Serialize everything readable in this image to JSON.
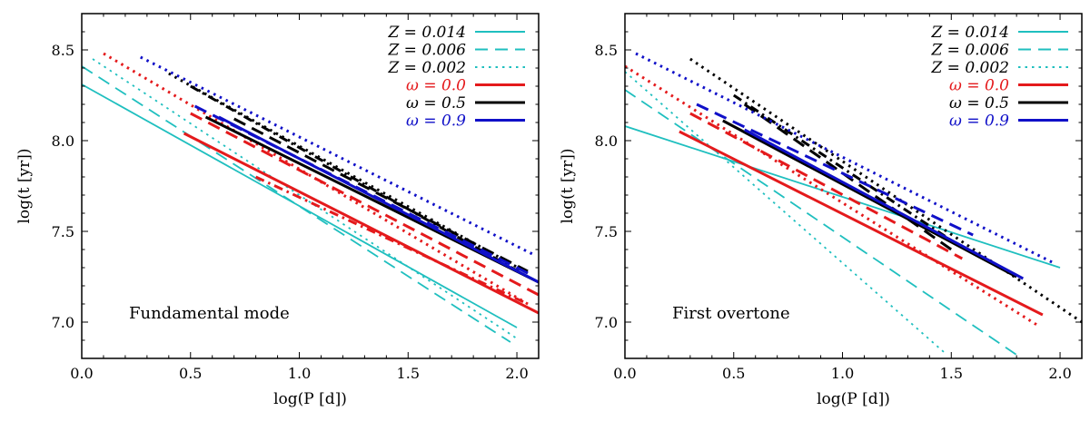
{
  "figure": {
    "colors": {
      "cyan": "#1FBFBF",
      "red": "#E41A1C",
      "black": "#000000",
      "blue": "#1010C8"
    }
  },
  "chart_data": [
    {
      "type": "line",
      "annotation": "Fundamental mode",
      "xlabel": "log(P [d])",
      "ylabel": "log(t [yr])",
      "xlim": [
        0.0,
        2.1
      ],
      "ylim": [
        6.8,
        8.7
      ],
      "xticks": [
        "0.0",
        "0.5",
        "1.0",
        "1.5",
        "2.0"
      ],
      "yticks": [
        "7.0",
        "7.5",
        "8.0",
        "8.5"
      ],
      "legend_position": "top-right",
      "legend": [
        {
          "label": "Z = 0.014",
          "color": "#1FBFBF",
          "dash": "solid"
        },
        {
          "label": "Z = 0.006",
          "color": "#1FBFBF",
          "dash": "dashed"
        },
        {
          "label": "Z = 0.002",
          "color": "#1FBFBF",
          "dash": "dotted"
        },
        {
          "label": "ω = 0.0",
          "color": "#E41A1C",
          "dash": "solid"
        },
        {
          "label": "ω = 0.5",
          "color": "#000000",
          "dash": "solid"
        },
        {
          "label": "ω = 0.9",
          "color": "#1010C8",
          "dash": "solid"
        }
      ],
      "series": [
        {
          "color": "#1FBFBF",
          "dash": "solid",
          "width": "thin",
          "x": [
            0.0,
            2.0
          ],
          "y": [
            8.31,
            6.97
          ]
        },
        {
          "color": "#1FBFBF",
          "dash": "dashed",
          "width": "thin",
          "x": [
            0.0,
            1.97
          ],
          "y": [
            8.41,
            6.89
          ]
        },
        {
          "color": "#1FBFBF",
          "dash": "dotted",
          "width": "thin",
          "x": [
            0.05,
            2.0
          ],
          "y": [
            8.45,
            6.91
          ]
        },
        {
          "color": "#E41A1C",
          "dash": "solid",
          "width": "thick",
          "x": [
            0.47,
            2.1
          ],
          "y": [
            8.04,
            7.05
          ]
        },
        {
          "color": "#E41A1C",
          "dash": "dashed",
          "width": "thick",
          "x": [
            0.5,
            2.1
          ],
          "y": [
            8.15,
            7.15
          ]
        },
        {
          "color": "#E41A1C",
          "dash": "dotted",
          "width": "thick",
          "x": [
            0.1,
            2.05
          ],
          "y": [
            8.48,
            7.1
          ]
        },
        {
          "color": "#000000",
          "dash": "solid",
          "width": "thick",
          "x": [
            0.57,
            2.1
          ],
          "y": [
            8.13,
            7.22
          ]
        },
        {
          "color": "#000000",
          "dash": "dashed",
          "width": "thick",
          "x": [
            0.7,
            2.05
          ],
          "y": [
            8.12,
            7.28
          ]
        },
        {
          "color": "#000000",
          "dash": "dotted",
          "width": "thick",
          "x": [
            0.4,
            2.05
          ],
          "y": [
            8.37,
            7.27
          ]
        },
        {
          "color": "#000000",
          "dash": "dashdot",
          "width": "thick",
          "x": [
            0.5,
            2.05
          ],
          "y": [
            8.3,
            7.25
          ]
        },
        {
          "color": "#1010C8",
          "dash": "solid",
          "width": "thick",
          "x": [
            0.63,
            2.1
          ],
          "y": [
            8.13,
            7.22
          ]
        },
        {
          "color": "#1010C8",
          "dash": "dashed",
          "width": "thick",
          "x": [
            0.52,
            2.05
          ],
          "y": [
            8.19,
            7.27
          ]
        },
        {
          "color": "#1010C8",
          "dash": "dotted",
          "width": "thick",
          "x": [
            0.27,
            2.08
          ],
          "y": [
            8.46,
            7.37
          ]
        },
        {
          "color": "#E41A1C",
          "dash": "dashdot",
          "width": "thick",
          "x": [
            0.8,
            2.05
          ],
          "y": [
            7.8,
            7.1
          ]
        }
      ]
    },
    {
      "type": "line",
      "annotation": "First overtone",
      "xlabel": "log(P [d])",
      "ylabel": "log(t [yr])",
      "xlim": [
        0.0,
        2.1
      ],
      "ylim": [
        6.8,
        8.7
      ],
      "xticks": [
        "0.0",
        "0.5",
        "1.0",
        "1.5",
        "2.0"
      ],
      "yticks": [
        "7.0",
        "7.5",
        "8.0",
        "8.5"
      ],
      "legend_position": "top-right",
      "legend": [
        {
          "label": "Z = 0.014",
          "color": "#1FBFBF",
          "dash": "solid"
        },
        {
          "label": "Z = 0.006",
          "color": "#1FBFBF",
          "dash": "dashed"
        },
        {
          "label": "Z = 0.002",
          "color": "#1FBFBF",
          "dash": "dotted"
        },
        {
          "label": "ω = 0.0",
          "color": "#E41A1C",
          "dash": "solid"
        },
        {
          "label": "ω = 0.5",
          "color": "#000000",
          "dash": "solid"
        },
        {
          "label": "ω = 0.9",
          "color": "#1010C8",
          "dash": "solid"
        }
      ],
      "series": [
        {
          "color": "#1FBFBF",
          "dash": "solid",
          "width": "thin",
          "x": [
            0.0,
            2.0
          ],
          "y": [
            8.08,
            7.3
          ]
        },
        {
          "color": "#1FBFBF",
          "dash": "dashed",
          "width": "thin",
          "x": [
            0.0,
            1.8
          ],
          "y": [
            8.28,
            6.82
          ]
        },
        {
          "color": "#1FBFBF",
          "dash": "dotted",
          "width": "thin",
          "x": [
            0.0,
            1.48
          ],
          "y": [
            8.38,
            6.82
          ]
        },
        {
          "color": "#E41A1C",
          "dash": "solid",
          "width": "thick",
          "x": [
            0.25,
            1.92
          ],
          "y": [
            8.05,
            7.04
          ]
        },
        {
          "color": "#E41A1C",
          "dash": "dashed",
          "width": "thick",
          "x": [
            0.3,
            1.55
          ],
          "y": [
            8.15,
            7.35
          ]
        },
        {
          "color": "#E41A1C",
          "dash": "dotted",
          "width": "thick",
          "x": [
            0.0,
            1.9
          ],
          "y": [
            8.41,
            6.98
          ]
        },
        {
          "color": "#000000",
          "dash": "solid",
          "width": "thick",
          "x": [
            0.45,
            1.8
          ],
          "y": [
            8.11,
            7.25
          ]
        },
        {
          "color": "#000000",
          "dash": "dashed",
          "width": "thick",
          "x": [
            0.55,
            1.5
          ],
          "y": [
            8.2,
            7.4
          ]
        },
        {
          "color": "#000000",
          "dash": "dotted",
          "width": "thick",
          "x": [
            0.3,
            2.1
          ],
          "y": [
            8.45,
            7.0
          ]
        },
        {
          "color": "#000000",
          "dash": "dashdot",
          "width": "thick",
          "x": [
            0.5,
            1.5
          ],
          "y": [
            8.25,
            7.45
          ]
        },
        {
          "color": "#1010C8",
          "dash": "solid",
          "width": "thick",
          "x": [
            0.55,
            1.83
          ],
          "y": [
            8.06,
            7.24
          ]
        },
        {
          "color": "#1010C8",
          "dash": "dashed",
          "width": "thick",
          "x": [
            0.33,
            1.6
          ],
          "y": [
            8.2,
            7.48
          ]
        },
        {
          "color": "#1010C8",
          "dash": "dotted",
          "width": "thick",
          "x": [
            0.05,
            1.98
          ],
          "y": [
            8.48,
            7.32
          ]
        }
      ]
    }
  ]
}
